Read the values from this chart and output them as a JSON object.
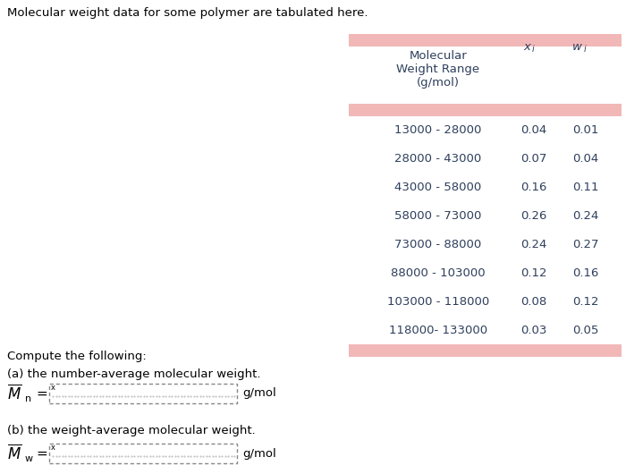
{
  "title": "Molecular weight data for some polymer are tabulated here.",
  "table_rows": [
    [
      "13000 - 28000",
      "0.04",
      "0.01"
    ],
    [
      "28000 - 43000",
      "0.07",
      "0.04"
    ],
    [
      "43000 - 58000",
      "0.16",
      "0.11"
    ],
    [
      "58000 - 73000",
      "0.26",
      "0.24"
    ],
    [
      "73000 - 88000",
      "0.24",
      "0.27"
    ],
    [
      "88000 - 103000",
      "0.12",
      "0.16"
    ],
    [
      "103000 - 118000",
      "0.08",
      "0.12"
    ],
    [
      "118000- 133000",
      "0.03",
      "0.05"
    ]
  ],
  "header_bar_color": "#f2b8b8",
  "table_text_color": "#2e3f5c",
  "background_color": "#ffffff",
  "compute_text": "Compute the following:",
  "part_a_text": "(a) the number-average molecular weight.",
  "part_b_text": "(b) the weight-average molecular weight.",
  "unit": "g/mol",
  "title_fontsize": 9.5,
  "table_fontsize": 9.5,
  "body_fontsize": 9.5
}
